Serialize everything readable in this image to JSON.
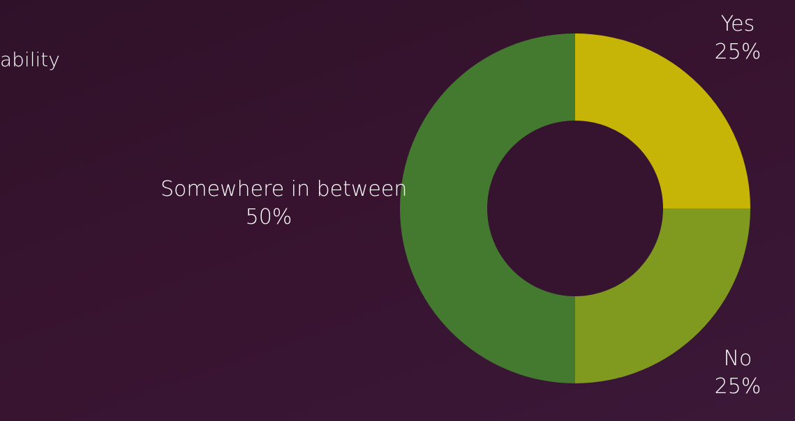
{
  "chart_data": {
    "type": "pie",
    "title_fragment": "ability",
    "series": [
      {
        "name": "",
        "values": [
          25,
          25,
          50
        ]
      }
    ],
    "categories": [
      "Yes",
      "No",
      "Somewhere in between"
    ],
    "percent_labels": [
      "25%",
      "25%",
      "50%"
    ],
    "colors": [
      "#c6b507",
      "#7f9a1f",
      "#437a2f"
    ],
    "donut": true,
    "start_angle": "12 o'clock, clockwise",
    "legend": "none"
  },
  "colors": {
    "background": "#36132f",
    "text": "#ffffff"
  }
}
